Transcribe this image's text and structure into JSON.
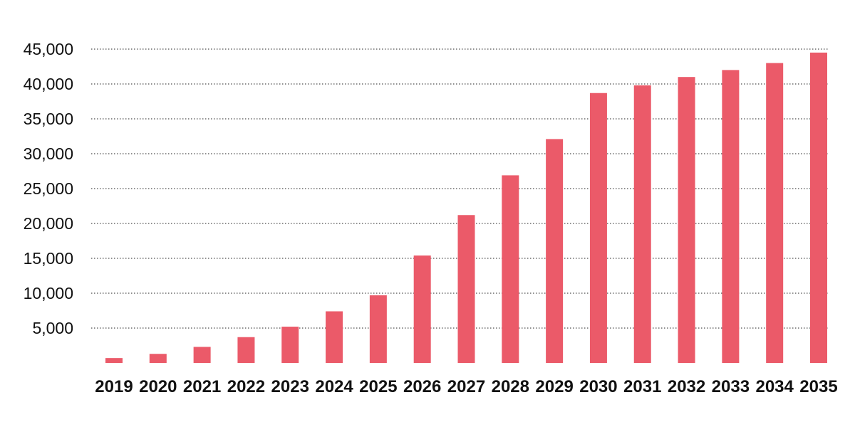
{
  "chart_data": {
    "type": "bar",
    "title": "",
    "xlabel": "",
    "ylabel": "",
    "categories": [
      "2019",
      "2020",
      "2021",
      "2022",
      "2023",
      "2024",
      "2025",
      "2026",
      "2027",
      "2028",
      "2029",
      "2030",
      "2031",
      "2032",
      "2033",
      "2034",
      "2035"
    ],
    "values": [
      700,
      1300,
      2300,
      3700,
      5200,
      7400,
      9700,
      15400,
      21200,
      26900,
      32100,
      38700,
      39800,
      41000,
      42000,
      43000,
      44500
    ],
    "ylim": [
      0,
      45000
    ],
    "yticks": [
      5000,
      10000,
      15000,
      20000,
      25000,
      30000,
      35000,
      40000,
      45000
    ],
    "ytick_labels": [
      "5,000",
      "10,000",
      "15,000",
      "20,000",
      "25,000",
      "30,000",
      "35,000",
      "40,000",
      "45,000"
    ],
    "grid": true,
    "bar_color": "#eb5a69",
    "legend": "none"
  }
}
